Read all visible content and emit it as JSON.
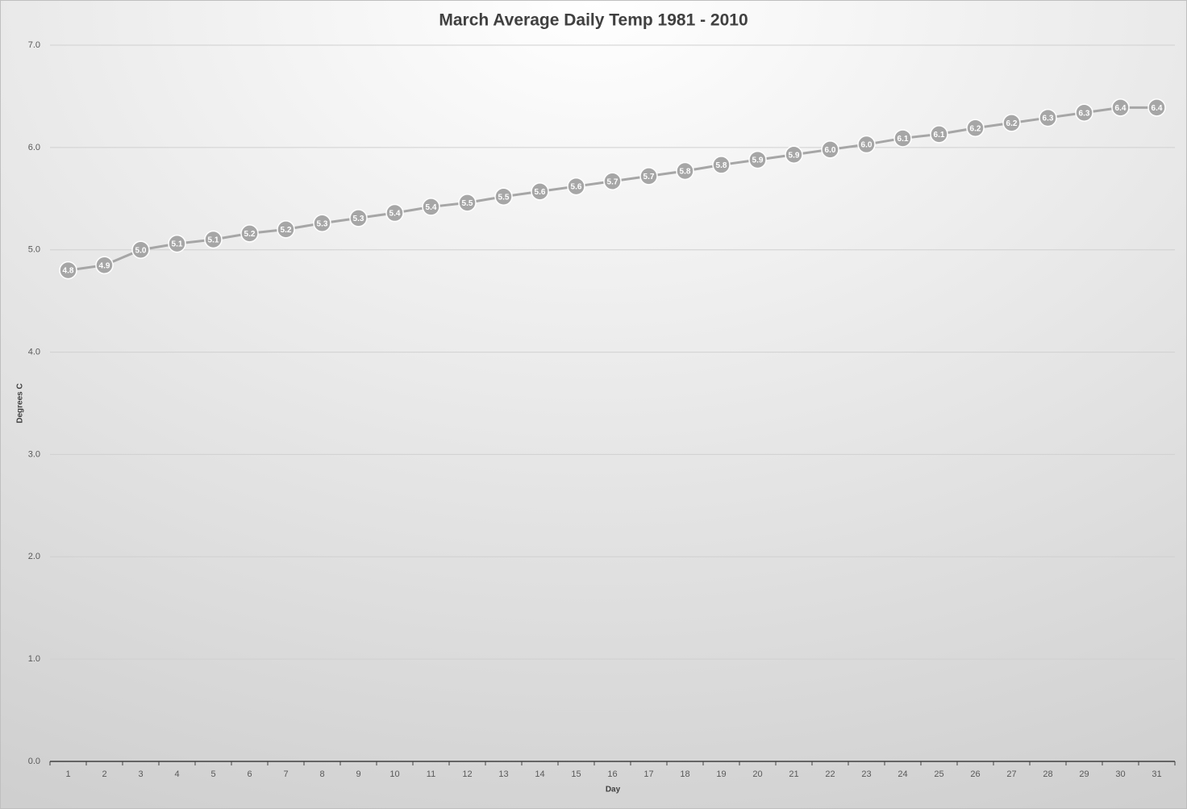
{
  "chart_data": {
    "type": "line",
    "title": "March Average Daily Temp 1981 - 2010",
    "x_label": "Day",
    "y_label": "Degrees C",
    "categories": [
      "1",
      "2",
      "3",
      "4",
      "5",
      "6",
      "7",
      "8",
      "9",
      "10",
      "11",
      "12",
      "13",
      "14",
      "15",
      "16",
      "17",
      "18",
      "19",
      "20",
      "21",
      "22",
      "23",
      "24",
      "25",
      "26",
      "27",
      "28",
      "29",
      "30",
      "31"
    ],
    "values": [
      4.8,
      4.85,
      5.0,
      5.06,
      5.1,
      5.16,
      5.2,
      5.26,
      5.31,
      5.36,
      5.42,
      5.46,
      5.52,
      5.57,
      5.62,
      5.67,
      5.72,
      5.77,
      5.83,
      5.88,
      5.93,
      5.98,
      6.03,
      6.09,
      6.13,
      6.19,
      6.24,
      6.29,
      6.34,
      6.39,
      6.39
    ],
    "value_labels": [
      "4.8",
      "4.9",
      "5.0",
      "5.1",
      "5.1",
      "5.2",
      "5.2",
      "5.3",
      "5.3",
      "5.4",
      "5.4",
      "5.5",
      "5.5",
      "5.6",
      "5.6",
      "5.7",
      "5.7",
      "5.8",
      "5.8",
      "5.9",
      "5.9",
      "6.0",
      "6.0",
      "6.1",
      "6.1",
      "6.2",
      "6.2",
      "6.3",
      "6.3",
      "6.4",
      "6.4"
    ],
    "color": "#a6a6a6",
    "ylim": [
      0,
      7
    ],
    "yticks": [
      {
        "value": 0,
        "label": "0.0"
      },
      {
        "value": 1,
        "label": "1.0"
      },
      {
        "value": 2,
        "label": "2.0"
      },
      {
        "value": 3,
        "label": "3.0"
      },
      {
        "value": 4,
        "label": "4.0"
      },
      {
        "value": 5,
        "label": "5.0"
      },
      {
        "value": 6,
        "label": "6.0"
      },
      {
        "value": 7,
        "label": "7.0"
      }
    ],
    "grid": true
  }
}
